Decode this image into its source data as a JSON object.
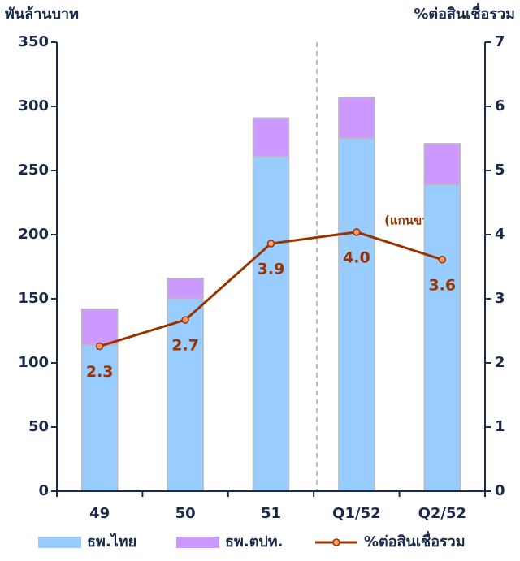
{
  "chart_data": {
    "type": "bar",
    "y_label": "พันล้านบาท",
    "y2_label": "%ต่อสินเชื่อรวม",
    "annotation": "(แกนขวา)",
    "categories": [
      "49",
      "50",
      "51",
      "Q1/52",
      "Q2/52"
    ],
    "series": [
      {
        "name": "ธพ.ไทย",
        "color": "#99ccff",
        "type": "bar",
        "values": [
          114,
          150,
          261,
          275,
          239
        ]
      },
      {
        "name": "ธพ.ตปท.",
        "color": "#cc99ff",
        "type": "bar",
        "values": [
          28,
          16,
          30,
          32,
          32
        ]
      },
      {
        "name": "%ต่อสินเชื่อรวม",
        "color": "#993300",
        "type": "line",
        "axis": "y2",
        "values": [
          2.26,
          2.67,
          3.86,
          4.04,
          3.61
        ],
        "value_labels": [
          "2.3",
          "2.7",
          "3.9",
          "4.0",
          "3.6"
        ]
      }
    ],
    "ylim": [
      0,
      350
    ],
    "yticks": [
      0,
      50,
      100,
      150,
      200,
      250,
      300,
      350
    ],
    "y2lim": [
      0,
      7
    ],
    "y2ticks": [
      0,
      1,
      2,
      3,
      4,
      5,
      6,
      7
    ],
    "stacked": true,
    "grid": false,
    "legend": "bottom"
  }
}
